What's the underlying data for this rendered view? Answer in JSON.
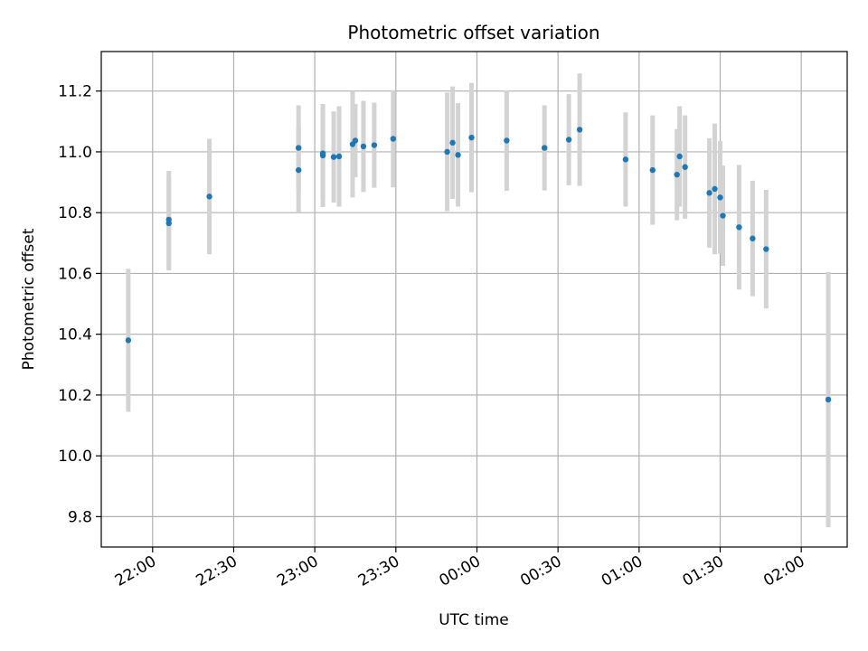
{
  "chart_data": {
    "type": "scatter",
    "title": "Photometric offset variation",
    "xlabel": "UTC time",
    "ylabel": "Photometric offset",
    "x_is_time": true,
    "x_ticks": [
      "22:00",
      "22:30",
      "23:00",
      "23:30",
      "00:00",
      "00:30",
      "01:00",
      "01:30",
      "02:00"
    ],
    "y_ticks": [
      "9.8",
      "10.0",
      "10.2",
      "10.4",
      "10.6",
      "10.8",
      "11.0",
      "11.2"
    ],
    "xlim": [
      "21:41",
      "02:17"
    ],
    "ylim": [
      9.7,
      11.33
    ],
    "grid": true,
    "marker_color": "#1f77b4",
    "errorbar_color": "#d3d3d3",
    "series": [
      {
        "points": [
          {
            "t": "21:51",
            "y": 10.38,
            "yerr": 0.235
          },
          {
            "t": "22:06",
            "y": 10.765,
            "yerr": 0.155
          },
          {
            "t": "22:06",
            "y": 10.777,
            "yerr": 0.16
          },
          {
            "t": "22:21",
            "y": 10.853,
            "yerr": 0.19
          },
          {
            "t": "22:54",
            "y": 10.94,
            "yerr": 0.14
          },
          {
            "t": "22:54",
            "y": 11.013,
            "yerr": 0.14
          },
          {
            "t": "23:03",
            "y": 10.995,
            "yerr": 0.15
          },
          {
            "t": "23:03",
            "y": 10.988,
            "yerr": 0.17
          },
          {
            "t": "23:07",
            "y": 10.983,
            "yerr": 0.15
          },
          {
            "t": "23:09",
            "y": 10.985,
            "yerr": 0.165
          },
          {
            "t": "23:14",
            "y": 11.025,
            "yerr": 0.175
          },
          {
            "t": "23:15",
            "y": 11.037,
            "yerr": 0.12
          },
          {
            "t": "23:18",
            "y": 11.018,
            "yerr": 0.15
          },
          {
            "t": "23:22",
            "y": 11.022,
            "yerr": 0.14
          },
          {
            "t": "23:29",
            "y": 11.043,
            "yerr": 0.16
          },
          {
            "t": "23:49",
            "y": 11.0,
            "yerr": 0.195
          },
          {
            "t": "23:51",
            "y": 11.03,
            "yerr": 0.185
          },
          {
            "t": "23:53",
            "y": 10.99,
            "yerr": 0.17
          },
          {
            "t": "23:58",
            "y": 11.047,
            "yerr": 0.18
          },
          {
            "t": "00:11",
            "y": 11.037,
            "yerr": 0.165
          },
          {
            "t": "00:25",
            "y": 11.013,
            "yerr": 0.14
          },
          {
            "t": "00:34",
            "y": 11.04,
            "yerr": 0.15
          },
          {
            "t": "00:38",
            "y": 11.073,
            "yerr": 0.185
          },
          {
            "t": "00:55",
            "y": 10.975,
            "yerr": 0.155
          },
          {
            "t": "01:05",
            "y": 10.94,
            "yerr": 0.18
          },
          {
            "t": "01:14",
            "y": 10.925,
            "yerr": 0.15
          },
          {
            "t": "01:15",
            "y": 10.985,
            "yerr": 0.165
          },
          {
            "t": "01:17",
            "y": 10.95,
            "yerr": 0.17
          },
          {
            "t": "01:26",
            "y": 10.865,
            "yerr": 0.18
          },
          {
            "t": "01:28",
            "y": 10.878,
            "yerr": 0.215
          },
          {
            "t": "01:30",
            "y": 10.85,
            "yerr": 0.185
          },
          {
            "t": "01:31",
            "y": 10.79,
            "yerr": 0.165
          },
          {
            "t": "01:37",
            "y": 10.752,
            "yerr": 0.205
          },
          {
            "t": "01:42",
            "y": 10.715,
            "yerr": 0.19
          },
          {
            "t": "01:47",
            "y": 10.68,
            "yerr": 0.195
          },
          {
            "t": "02:10",
            "y": 10.185,
            "yerr": 0.42
          }
        ]
      }
    ]
  }
}
